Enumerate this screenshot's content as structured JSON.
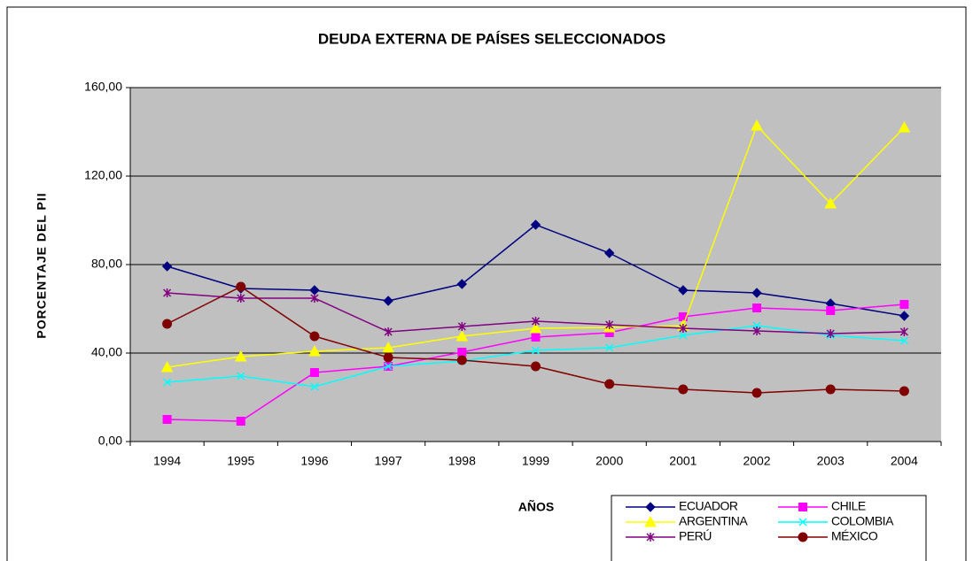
{
  "chart_data": {
    "type": "line",
    "title": "DEUDA EXTERNA DE PAÍSES SELECCIONADOS",
    "x_label": "AÑOS",
    "y_label": "PORCENTAJE DEL PII",
    "categories": [
      "1994",
      "1995",
      "1996",
      "1997",
      "1998",
      "1999",
      "2000",
      "2001",
      "2002",
      "2003",
      "2004"
    ],
    "ylim": [
      0,
      160
    ],
    "yticks": [
      {
        "value": 0,
        "label": "0,00"
      },
      {
        "value": 40,
        "label": "40,00"
      },
      {
        "value": 80,
        "label": "80,00"
      },
      {
        "value": 120,
        "label": "120,00"
      },
      {
        "value": 160,
        "label": "160,00"
      }
    ],
    "grid": true,
    "legend": "bottom-right",
    "series": [
      {
        "name": "ECUADOR",
        "color": "#000080",
        "marker": "diamond",
        "values": [
          79.2,
          69.2,
          68.4,
          63.6,
          71.2,
          98,
          85.2,
          68.4,
          67.2,
          62.4,
          56.8
        ]
      },
      {
        "name": "CHILE",
        "color": "#ff00ff",
        "marker": "square",
        "values": [
          10,
          9.2,
          31.2,
          34,
          40.4,
          47.2,
          49.2,
          56.4,
          60.4,
          59.2,
          62
        ]
      },
      {
        "name": "ARGENTINA",
        "color": "#ffff00",
        "marker": "triangle",
        "values": [
          33.6,
          38.4,
          40.8,
          42.4,
          47.6,
          51.2,
          51.6,
          52.4,
          142.8,
          107.6,
          142
        ]
      },
      {
        "name": "COLOMBIA",
        "color": "#00ffff",
        "marker": "x",
        "values": [
          26.8,
          29.6,
          24.8,
          34,
          36.4,
          41.2,
          42.4,
          48,
          52.4,
          48,
          45.6
        ]
      },
      {
        "name": "PERÚ",
        "color": "#800080",
        "marker": "star",
        "values": [
          67.2,
          64.8,
          64.8,
          49.6,
          52,
          54.4,
          52.8,
          51.2,
          50,
          48.8,
          49.6
        ]
      },
      {
        "name": "MÉXICO",
        "color": "#800000",
        "marker": "circle",
        "values": [
          53.2,
          70,
          47.6,
          38,
          36.8,
          34,
          26,
          23.6,
          22,
          23.6,
          22.8
        ]
      }
    ]
  }
}
